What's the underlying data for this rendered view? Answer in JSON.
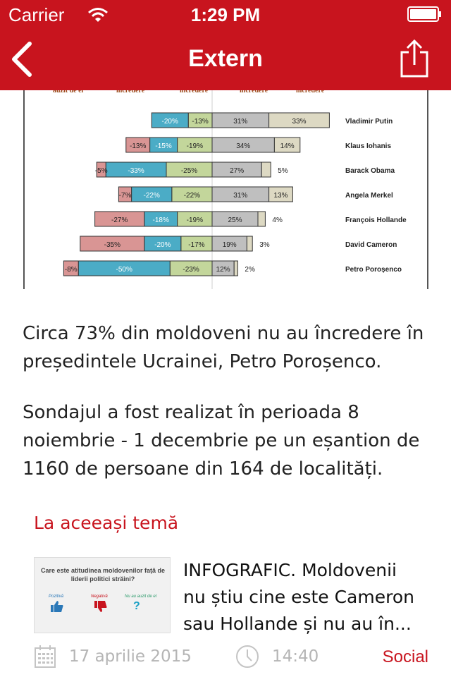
{
  "status_bar": {
    "carrier": "Carrier",
    "time": "1:29 PM"
  },
  "nav": {
    "title": "Extern"
  },
  "chart_data": {
    "type": "bar",
    "title": "",
    "column_headers": [
      "auzit de el",
      "încredere",
      "încredere",
      "încredere",
      "încredere"
    ],
    "categories": [
      "Vladimir Putin",
      "Klaus Iohanis",
      "Barack Obama",
      "Angela Merkel",
      "François Hollande",
      "David Cameron",
      "Petro Poroșenco"
    ],
    "series": [
      {
        "color": "#d99594",
        "values": [
          0,
          -13,
          -5,
          -7,
          -27,
          -35,
          -8
        ]
      },
      {
        "color": "#4bacc6",
        "values": [
          -20,
          -15,
          -33,
          -22,
          -18,
          -20,
          -50
        ]
      },
      {
        "color": "#c3d69b",
        "values": [
          -13,
          -19,
          -25,
          -22,
          -19,
          -17,
          -23
        ]
      },
      {
        "color": "#bfbfbf",
        "values": [
          31,
          34,
          27,
          31,
          25,
          19,
          12
        ]
      },
      {
        "color": "#ddd9c3",
        "values": [
          33,
          14,
          5,
          13,
          4,
          3,
          2
        ]
      }
    ],
    "labels": [
      [
        "",
        "-20%",
        "-13%",
        "31%",
        "33%"
      ],
      [
        "-13%",
        "-15%",
        "-19%",
        "34%",
        "14%"
      ],
      [
        "-5%",
        "-33%",
        "-25%",
        "27%",
        "5%"
      ],
      [
        "-7%",
        "-22%",
        "-22%",
        "31%",
        "13%"
      ],
      [
        "-27%",
        "-18%",
        "-19%",
        "25%",
        "4%"
      ],
      [
        "-35%",
        "-20%",
        "-17%",
        "19%",
        "3%"
      ],
      [
        "-8%",
        "-50%",
        "-23%",
        "12%",
        "2%"
      ]
    ],
    "header_color": "#9a4a1a"
  },
  "article": {
    "p1": "Circa 73% din moldoveni nu au încredere în președintele Ucrainei, Petro Poroșenco.",
    "p2": "Sondajul a fost realizat în perioada 8 noiembrie - 1 decembrie pe un eșantion de 1160 de persoane din 164 de localități."
  },
  "related": {
    "heading": "La aceeași temă",
    "thumbnail": {
      "title": "Care este atitudinea moldovenilor față de liderii politici străini?",
      "labels": [
        "Pozitivă",
        "Negativă",
        "Nu au auzit de el"
      ],
      "mark": "?"
    },
    "title": "INFOGRAFIC. Moldovenii nu știu cine este Cameron sau Hollande și nu au în...",
    "date": "17 aprilie 2015",
    "time": "14:40",
    "category": "Social"
  },
  "icons": {
    "back": "chevron-left-icon",
    "share": "share-icon",
    "calendar": "calendar-icon",
    "clock": "clock-icon",
    "wifi": "wifi-icon",
    "battery": "battery-icon"
  },
  "colors": {
    "brand": "#c8141e",
    "meta": "#b5b5b5"
  }
}
